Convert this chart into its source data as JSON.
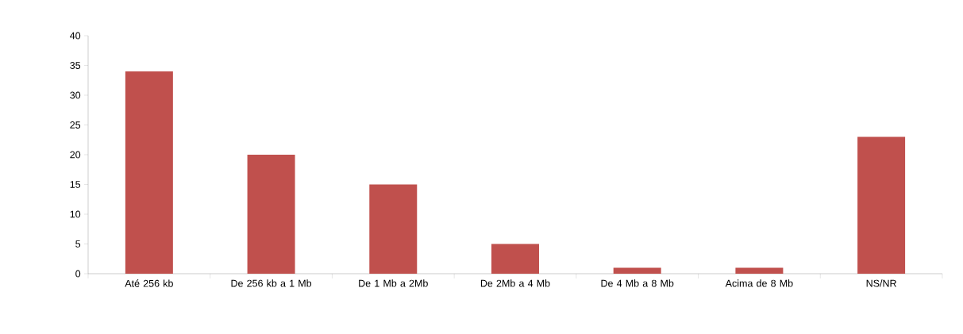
{
  "chart_data": {
    "type": "bar",
    "categories": [
      "Até 256 kb",
      "De 256 kb a 1 Mb",
      "De 1 Mb a 2Mb",
      "De 2Mb a 4 Mb",
      "De 4 Mb a 8 Mb",
      "Acima de 8 Mb",
      "NS/NR"
    ],
    "values": [
      34,
      20,
      15,
      5,
      1,
      1,
      23
    ],
    "color": "#c0504d",
    "ylim": [
      0,
      40
    ],
    "yticks": [
      0,
      5,
      10,
      15,
      20,
      25,
      30,
      35,
      40
    ],
    "grid": false
  }
}
